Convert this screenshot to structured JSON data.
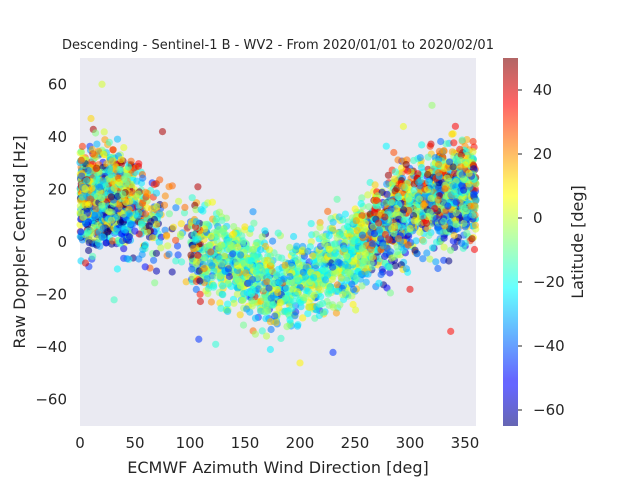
{
  "chart_data": {
    "type": "scatter",
    "title": "Descending - Sentinel-1 B - WV2 - From 2020/01/01 to 2020/02/01",
    "xlabel": "ECMWF Azimuth Wind Direction [deg]",
    "ylabel": "Raw Doppler Centroid [Hz]",
    "xlim": [
      0,
      360
    ],
    "ylim": [
      -70,
      70
    ],
    "xticks": [
      0,
      50,
      100,
      150,
      200,
      250,
      300,
      350
    ],
    "yticks": [
      -60,
      -40,
      -20,
      0,
      20,
      40,
      60
    ],
    "grid": false,
    "background": "#eaeaf2",
    "colorbar": {
      "label": "Latitude [deg]",
      "range": [
        -65,
        50
      ],
      "ticks": [
        -60,
        -40,
        -20,
        0,
        20,
        40
      ],
      "colormap": "jet"
    },
    "trend": {
      "description": "Doppler follows a cosine-like curve vs wind direction",
      "points": [
        {
          "x": 0,
          "y": 20
        },
        {
          "x": 50,
          "y": 14
        },
        {
          "x": 100,
          "y": 0
        },
        {
          "x": 150,
          "y": -12
        },
        {
          "x": 180,
          "y": -17
        },
        {
          "x": 210,
          "y": -14
        },
        {
          "x": 250,
          "y": -2
        },
        {
          "x": 300,
          "y": 14
        },
        {
          "x": 340,
          "y": 20
        },
        {
          "x": 360,
          "y": 20
        }
      ],
      "spread_hz": 11,
      "point_count": 3800
    },
    "outliers": [
      {
        "x": 20,
        "y": 60,
        "lat": 2
      },
      {
        "x": 320,
        "y": 52,
        "lat": -5
      },
      {
        "x": 300,
        "y": -18,
        "lat": 38
      },
      {
        "x": 337,
        "y": -34,
        "lat": 35
      },
      {
        "x": 200,
        "y": -46,
        "lat": 8
      },
      {
        "x": 230,
        "y": -42,
        "lat": -45
      },
      {
        "x": 31,
        "y": -22,
        "lat": -15
      },
      {
        "x": 108,
        "y": -37,
        "lat": -45
      },
      {
        "x": 5,
        "y": -8,
        "lat": 40
      },
      {
        "x": 75,
        "y": 42,
        "lat": 45
      }
    ]
  }
}
